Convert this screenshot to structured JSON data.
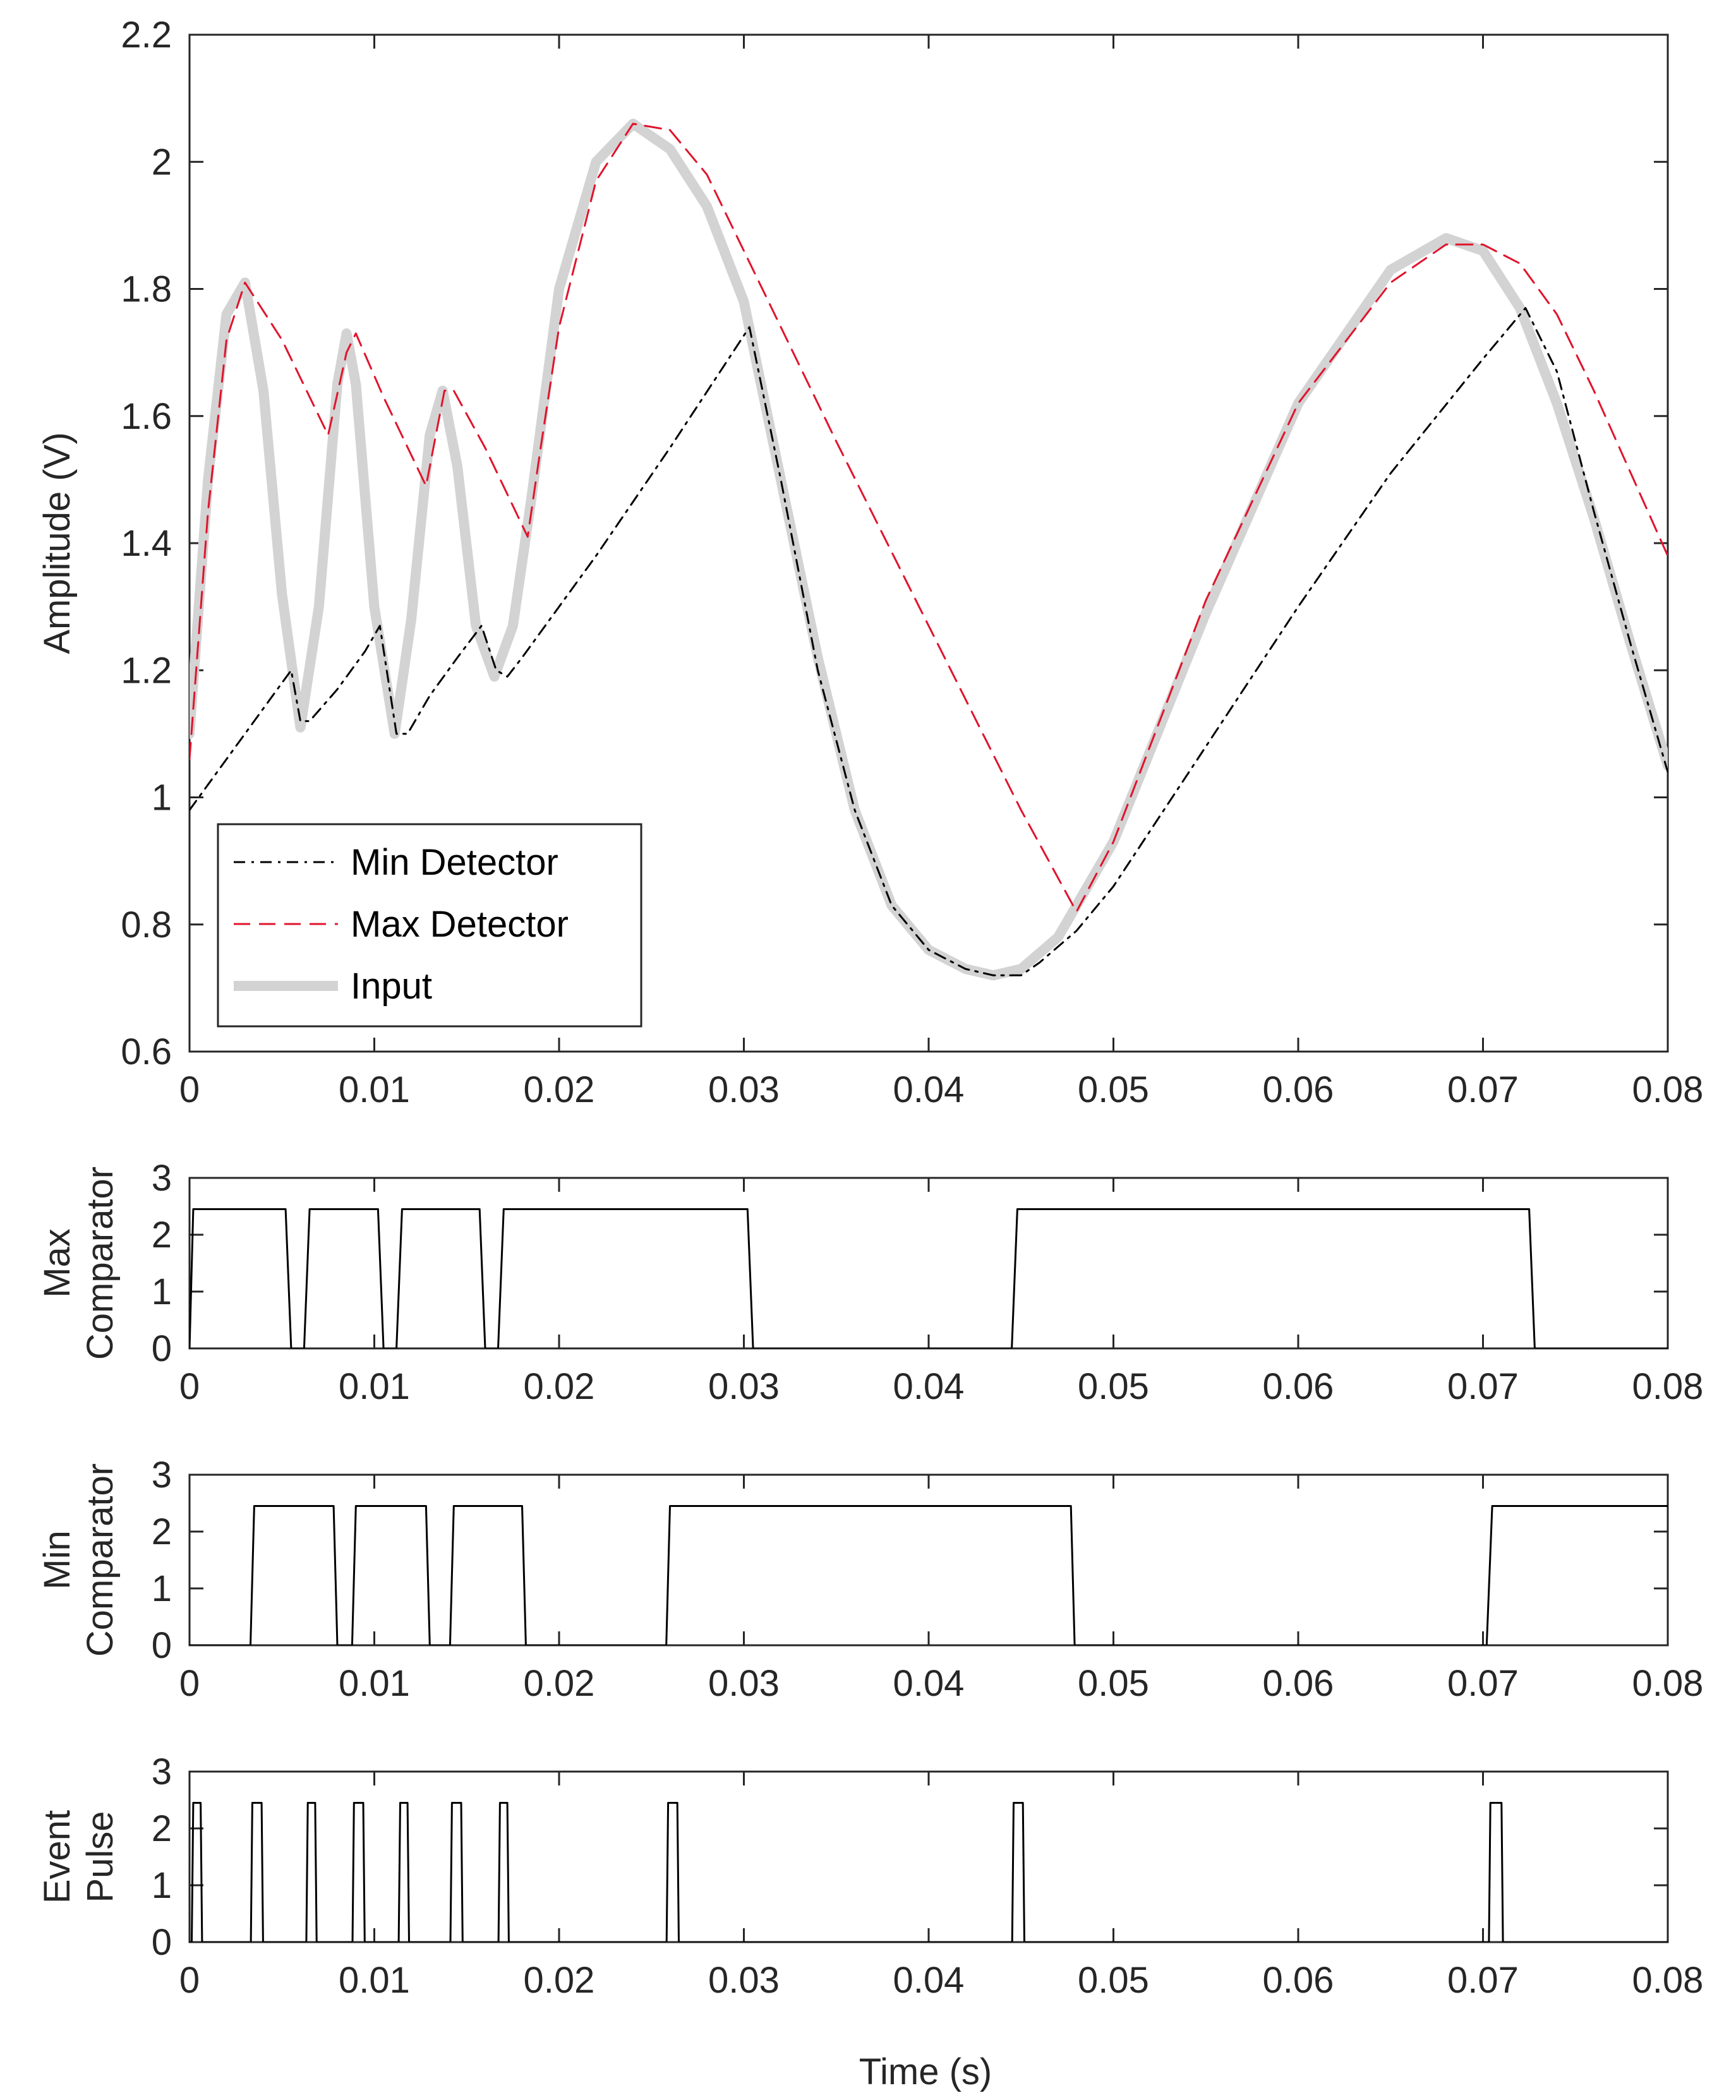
{
  "figure": {
    "xlabel": "Time (s)",
    "colors": {
      "input": "#d3d3d3",
      "min_detector": "#000000",
      "max_detector": "#e0142c",
      "comparator": "#000000",
      "axes": "#262626"
    }
  },
  "chart_data": [
    {
      "type": "line",
      "ylabel": "Amplitude (V)",
      "xlim": [
        0,
        0.08
      ],
      "ylim": [
        0.6,
        2.2
      ],
      "xticks": [
        "0",
        "0.01",
        "0.02",
        "0.03",
        "0.04",
        "0.05",
        "0.06",
        "0.07",
        "0.08"
      ],
      "yticks": [
        "0.6",
        "0.8",
        "1",
        "1.2",
        "1.4",
        "1.6",
        "1.8",
        "2",
        "2.2"
      ],
      "legend_position": "bottom-left",
      "grid": false,
      "series": [
        {
          "name": "Min Detector",
          "style": "dash-dot",
          "color": "#000000",
          "x": [
            0,
            0.002,
            0.004,
            0.0055,
            0.006,
            0.0065,
            0.008,
            0.0095,
            0.0103,
            0.0112,
            0.0118,
            0.013,
            0.0145,
            0.0158,
            0.0166,
            0.0172,
            0.018,
            0.022,
            0.026,
            0.0303,
            0.032,
            0.034,
            0.036,
            0.038,
            0.04,
            0.042,
            0.0435,
            0.045,
            0.046,
            0.048,
            0.05,
            0.055,
            0.06,
            0.065,
            0.07,
            0.0723,
            0.074,
            0.076,
            0.078,
            0.08
          ],
          "y": [
            0.98,
            1.06,
            1.14,
            1.2,
            1.12,
            1.12,
            1.17,
            1.23,
            1.27,
            1.1,
            1.1,
            1.16,
            1.22,
            1.27,
            1.2,
            1.19,
            1.22,
            1.38,
            1.55,
            1.74,
            1.5,
            1.2,
            0.98,
            0.83,
            0.76,
            0.73,
            0.72,
            0.72,
            0.74,
            0.79,
            0.86,
            1.08,
            1.3,
            1.51,
            1.69,
            1.77,
            1.67,
            1.45,
            1.24,
            1.04
          ]
        },
        {
          "name": "Max Detector",
          "style": "dashed",
          "color": "#e0142c",
          "x": [
            0,
            0.001,
            0.002,
            0.003,
            0.005,
            0.0075,
            0.0085,
            0.009,
            0.0105,
            0.0128,
            0.0138,
            0.0143,
            0.016,
            0.0183,
            0.019,
            0.02,
            0.022,
            0.024,
            0.026,
            0.028,
            0.03,
            0.035,
            0.04,
            0.045,
            0.048,
            0.05,
            0.055,
            0.06,
            0.065,
            0.068,
            0.07,
            0.072,
            0.074,
            0.076,
            0.078,
            0.08
          ],
          "y": [
            1.06,
            1.45,
            1.72,
            1.81,
            1.72,
            1.57,
            1.7,
            1.73,
            1.63,
            1.49,
            1.64,
            1.64,
            1.55,
            1.41,
            1.55,
            1.74,
            1.97,
            2.06,
            2.05,
            1.98,
            1.86,
            1.56,
            1.27,
            0.98,
            0.82,
            0.93,
            1.31,
            1.62,
            1.81,
            1.87,
            1.87,
            1.84,
            1.76,
            1.64,
            1.51,
            1.38
          ]
        },
        {
          "name": "Input",
          "style": "solid-thick",
          "color": "#d3d3d3",
          "x": [
            0,
            0.001,
            0.002,
            0.003,
            0.004,
            0.005,
            0.006,
            0.007,
            0.008,
            0.0085,
            0.009,
            0.01,
            0.0111,
            0.012,
            0.013,
            0.0137,
            0.0145,
            0.0155,
            0.0165,
            0.0175,
            0.0185,
            0.02,
            0.022,
            0.024,
            0.026,
            0.028,
            0.03,
            0.032,
            0.034,
            0.036,
            0.038,
            0.04,
            0.042,
            0.0435,
            0.045,
            0.047,
            0.05,
            0.055,
            0.06,
            0.065,
            0.068,
            0.07,
            0.072,
            0.074,
            0.076,
            0.078,
            0.08
          ],
          "y": [
            1.1,
            1.5,
            1.76,
            1.81,
            1.64,
            1.32,
            1.11,
            1.3,
            1.65,
            1.73,
            1.65,
            1.3,
            1.1,
            1.28,
            1.57,
            1.64,
            1.52,
            1.27,
            1.19,
            1.27,
            1.47,
            1.8,
            2.0,
            2.06,
            2.02,
            1.93,
            1.78,
            1.5,
            1.22,
            0.98,
            0.83,
            0.76,
            0.73,
            0.72,
            0.73,
            0.78,
            0.93,
            1.29,
            1.62,
            1.83,
            1.88,
            1.86,
            1.77,
            1.62,
            1.44,
            1.24,
            1.05
          ]
        }
      ]
    },
    {
      "type": "line",
      "ylabel": "Max Comparator",
      "xlim": [
        0,
        0.08
      ],
      "ylim": [
        0,
        3
      ],
      "xticks": [
        "0",
        "0.01",
        "0.02",
        "0.03",
        "0.04",
        "0.05",
        "0.06",
        "0.07",
        "0.08"
      ],
      "yticks": [
        "0",
        "1",
        "2",
        "3"
      ],
      "series": [
        {
          "color": "#000000",
          "x": [
            0,
            0.0002,
            0.0052,
            0.0055,
            0.0062,
            0.0065,
            0.0102,
            0.0105,
            0.0112,
            0.0115,
            0.0157,
            0.016,
            0.0167,
            0.017,
            0.0302,
            0.0305,
            0.0445,
            0.0448,
            0.0725,
            0.0728,
            0.08
          ],
          "y": [
            0,
            2.45,
            2.45,
            0,
            0,
            2.45,
            2.45,
            0,
            0,
            2.45,
            2.45,
            0,
            0,
            2.45,
            2.45,
            0,
            0,
            2.45,
            2.45,
            0,
            0
          ]
        }
      ]
    },
    {
      "type": "line",
      "ylabel": "Min Comparator",
      "xlim": [
        0,
        0.08
      ],
      "ylim": [
        0,
        3
      ],
      "xticks": [
        "0",
        "0.01",
        "0.02",
        "0.03",
        "0.04",
        "0.05",
        "0.06",
        "0.07",
        "0.08"
      ],
      "yticks": [
        "0",
        "1",
        "2",
        "3"
      ],
      "series": [
        {
          "color": "#000000",
          "x": [
            0,
            0.0033,
            0.0035,
            0.0078,
            0.008,
            0.0088,
            0.009,
            0.0128,
            0.013,
            0.0141,
            0.0143,
            0.018,
            0.0182,
            0.0258,
            0.026,
            0.0477,
            0.0479,
            0.0702,
            0.0705,
            0.08
          ],
          "y": [
            0,
            0,
            2.45,
            2.45,
            0,
            0,
            2.45,
            2.45,
            0,
            0,
            2.45,
            2.45,
            0,
            0,
            2.45,
            2.45,
            0,
            0,
            2.45,
            2.45
          ]
        }
      ]
    },
    {
      "type": "line",
      "ylabel": "Event Pulse",
      "xlim": [
        0,
        0.08
      ],
      "ylim": [
        0,
        3
      ],
      "xticks": [
        "0",
        "0.01",
        "0.02",
        "0.03",
        "0.04",
        "0.05",
        "0.06",
        "0.07",
        "0.08"
      ],
      "yticks": [
        "0",
        "1",
        "2",
        "3"
      ],
      "series": [
        {
          "color": "#000000",
          "pulses": [
            [
              0.0002,
              0.0006
            ],
            [
              0.0034,
              0.0039
            ],
            [
              0.0064,
              0.0068
            ],
            [
              0.0089,
              0.0094
            ],
            [
              0.0114,
              0.0118
            ],
            [
              0.0142,
              0.0147
            ],
            [
              0.0168,
              0.0172
            ],
            [
              0.0259,
              0.0264
            ],
            [
              0.0446,
              0.0451
            ],
            [
              0.0704,
              0.071
            ]
          ],
          "high": 2.45
        }
      ]
    }
  ]
}
